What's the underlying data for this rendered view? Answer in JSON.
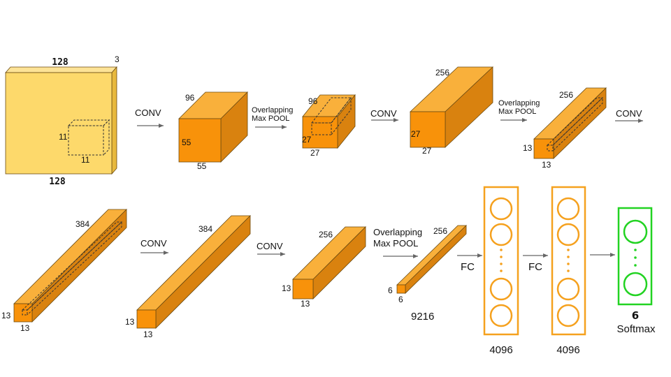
{
  "colors": {
    "input_front": "#FDD96B",
    "input_top": "#FDE396",
    "input_side": "#E8B93E",
    "orange_front": "#F8920A",
    "orange_top": "#F9B03B",
    "orange_side": "#D9820F",
    "fc": "#F5A11E",
    "softmax": "#22D322",
    "arrow": "#666666"
  },
  "input": {
    "width_top": "128",
    "width_bottom": "128",
    "depth": "3",
    "kernel_h": "11",
    "kernel_w": "11"
  },
  "ops": {
    "conv1": "CONV",
    "pool1_line1": "Overlapping",
    "pool1_line2": "Max POOL",
    "conv2": "CONV",
    "pool2_line1": "Overlapping",
    "pool2_line2": "Max POOL",
    "conv3": "CONV",
    "conv4": "CONV",
    "conv5": "CONV",
    "pool3_line1": "Overlapping",
    "pool3_line2": "Max POOL",
    "fc1": "FC",
    "fc2": "FC"
  },
  "layers": {
    "l1": {
      "depth": "96",
      "h": "55",
      "w": "55"
    },
    "l2": {
      "depth": "96",
      "h": "27",
      "w": "27"
    },
    "l3": {
      "depth": "256",
      "h": "27",
      "w": "27"
    },
    "l4": {
      "depth": "256",
      "h": "13",
      "w": "13"
    },
    "l5": {
      "depth": "384",
      "h": "13",
      "w": "13"
    },
    "l6": {
      "depth": "384",
      "h": "13",
      "w": "13"
    },
    "l7": {
      "depth": "256",
      "h": "13",
      "w": "13"
    },
    "l8": {
      "depth": "256",
      "h": "6",
      "w": "6"
    }
  },
  "flatten": "9216",
  "fc_layers": {
    "fc1_units": "4096",
    "fc2_units": "4096",
    "output_units": "6",
    "output_label": "Softmax"
  }
}
